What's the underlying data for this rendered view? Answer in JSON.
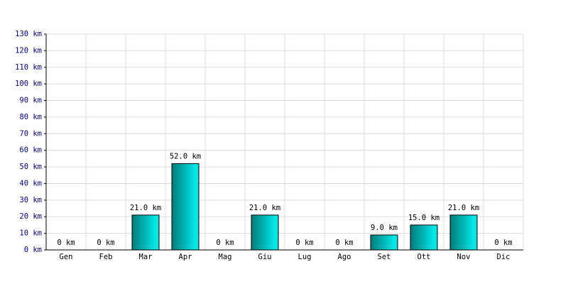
{
  "chart_data": {
    "type": "bar",
    "categories": [
      "Gen",
      "Feb",
      "Mar",
      "Apr",
      "Mag",
      "Giu",
      "Lug",
      "Ago",
      "Set",
      "Ott",
      "Nov",
      "Dic"
    ],
    "values": [
      0,
      0,
      21,
      52,
      0,
      21,
      0,
      0,
      9,
      15,
      21,
      0
    ],
    "value_labels": [
      "0 km",
      "0 km",
      "21.0 km",
      "52.0 km",
      "0 km",
      "21.0 km",
      "0 km",
      "0 km",
      "9.0 km",
      "15.0 km",
      "21.0 km",
      "0 km"
    ],
    "color": "#00e5e5",
    "ylim": [
      0,
      130
    ],
    "yticks": [
      {
        "value": 0,
        "label": "0 km"
      },
      {
        "value": 10,
        "label": "10 km"
      },
      {
        "value": 20,
        "label": "20 km"
      },
      {
        "value": 30,
        "label": "30 km"
      },
      {
        "value": 40,
        "label": "40 km"
      },
      {
        "value": 50,
        "label": "50 km"
      },
      {
        "value": 60,
        "label": "60 km"
      },
      {
        "value": 70,
        "label": "70 km"
      },
      {
        "value": 80,
        "label": "80 km"
      },
      {
        "value": 90,
        "label": "90 km"
      },
      {
        "value": 100,
        "label": "100 km"
      },
      {
        "value": 110,
        "label": "110 km"
      },
      {
        "value": 120,
        "label": "120 km"
      },
      {
        "value": 130,
        "label": "130 km"
      }
    ],
    "grid": true
  }
}
